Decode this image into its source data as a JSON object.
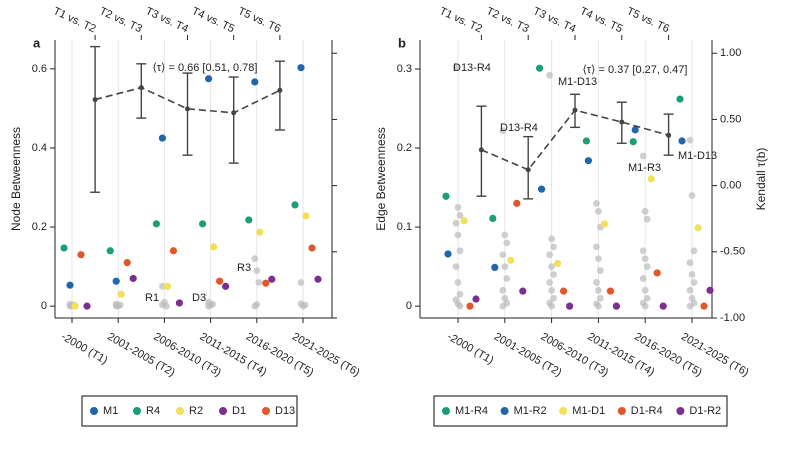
{
  "chart_data": [
    {
      "type": "scatter",
      "panel_label": "a",
      "ylabel": "Node Betweenness",
      "categories": [
        "-2000 (T1)",
        "2001-2005 (T2)",
        "2006-2010 (T3)",
        "2011-2015 (T4)",
        "2016-2020 (T5)",
        "2021-2025 (T6)"
      ],
      "top_categories": [
        "T1 vs. T2",
        "T2 vs. T3",
        "T3 vs. T4",
        "T4 vs. T5",
        "T5 vs. T6"
      ],
      "ylim": [
        -0.03,
        0.673
      ],
      "yticks": [
        0,
        0.2,
        0.4,
        0.6
      ],
      "y2lim": [
        -1,
        1.1
      ],
      "y2ticks": [
        -1,
        -0.5,
        0,
        0.5,
        1
      ],
      "y2tick_labels": false,
      "series": [
        {
          "name": "M1",
          "color": "#2166ac",
          "values": [
            0.053,
            0.063,
            0.425,
            0.575,
            0.567,
            0.603
          ]
        },
        {
          "name": "R4",
          "color": "#1b9e77",
          "values": [
            0.147,
            0.14,
            0.208,
            0.208,
            0.218,
            0.256
          ]
        },
        {
          "name": "R2",
          "color": "#f0e05a",
          "values": [
            0,
            0.03,
            0.05,
            0.15,
            0.187,
            0.228
          ]
        },
        {
          "name": "D1",
          "color": "#7b2f8e",
          "values": [
            0,
            0.07,
            0.008,
            0.05,
            0.068,
            0.068
          ]
        },
        {
          "name": "D13",
          "color": "#e0582a",
          "values": [
            0.13,
            0.11,
            0.14,
            0.063,
            0.058,
            0.147
          ]
        }
      ],
      "gray_color": "#bbbbbb",
      "gray_values": [
        [
          0,
          0,
          0.003,
          0.005
        ],
        [
          0,
          0,
          0.003,
          0.005
        ],
        [
          0.05,
          0.01,
          0,
          0.003
        ],
        [
          0,
          0.003,
          0.005,
          0.01
        ],
        [
          0.12,
          0.09,
          0.06,
          0,
          0.004
        ],
        [
          0.06,
          0,
          0.003,
          0.006
        ]
      ],
      "tau": {
        "axis": "y2",
        "color": "#444444",
        "values": [
          0.65,
          0.74,
          0.58,
          0.55,
          0.72
        ],
        "lower": [
          -0.05,
          0.51,
          0.23,
          0.17,
          0.42
        ],
        "upper": [
          1.05,
          0.92,
          0.85,
          0.82,
          0.94
        ]
      },
      "annotations": [
        "⟨τ⟩ = 0.66 [0.51, 0.78]",
        "R1",
        "D3",
        "R3"
      ]
    },
    {
      "type": "scatter",
      "panel_label": "b",
      "ylabel": "Edge Betweenness",
      "y2label": "Kendall τ(b)",
      "categories": [
        "-2000 (T1)",
        "2001-2005 (T2)",
        "2006-2010 (T3)",
        "2011-2015 (T4)",
        "2016-2020 (T5)",
        "2021-2025 (T6)"
      ],
      "top_categories": [
        "T1 vs. T2",
        "T2 vs. T3",
        "T3 vs. T4",
        "T4 vs. T5",
        "T5 vs. T6"
      ],
      "ylim": [
        -0.015,
        0.3367
      ],
      "yticks": [
        0,
        0.1,
        0.2,
        0.3
      ],
      "y2lim": [
        -1,
        1.1
      ],
      "y2ticks": [
        {
          "value": -1,
          "label": "-1.00"
        },
        {
          "value": -0.5,
          "label": "-0.50"
        },
        {
          "value": 0,
          "label": "0.00"
        },
        {
          "value": 0.5,
          "label": "0.50"
        },
        {
          "value": 1,
          "label": "1.00"
        }
      ],
      "series": [
        {
          "name": "M1-R4",
          "color": "#1b9e77",
          "values": [
            0.139,
            0.111,
            0.301,
            0.209,
            0.208,
            0.262
          ]
        },
        {
          "name": "M1-R2",
          "color": "#2166ac",
          "values": [
            0.066,
            0.049,
            0.148,
            0.184,
            0.223,
            0.209
          ]
        },
        {
          "name": "M1-D1",
          "color": "#f0e05a",
          "values": [
            0.108,
            0.058,
            0.054,
            0.104,
            0.161,
            0.099
          ]
        },
        {
          "name": "D1-R4",
          "color": "#e0582a",
          "values": [
            0,
            0.13,
            0.019,
            0.019,
            0.042,
            0
          ]
        },
        {
          "name": "D1-R2",
          "color": "#7b2f8e",
          "values": [
            0.009,
            0.019,
            0,
            0,
            0,
            0.02
          ]
        }
      ],
      "gray_color": "#bbbbbb",
      "gray_values": [
        [
          0.302,
          0.125,
          0.115,
          0.105,
          0.09,
          0.07,
          0.05,
          0.03,
          0.015,
          0.008,
          0.003,
          0
        ],
        [
          0.222,
          0.09,
          0.08,
          0.065,
          0.05,
          0.035,
          0.02,
          0.01,
          0.004,
          0
        ],
        [
          0.292,
          0.085,
          0.075,
          0.065,
          0.05,
          0.04,
          0.03,
          0.02,
          0.01,
          0.004,
          0
        ],
        [
          0.13,
          0.12,
          0.1,
          0.075,
          0.06,
          0.045,
          0.03,
          0.02,
          0.01,
          0.003,
          0
        ],
        [
          0.19,
          0.12,
          0.11,
          0.07,
          0.06,
          0.05,
          0.035,
          0.02,
          0.01,
          0.004,
          0
        ],
        [
          0.21,
          0.14,
          0.07,
          0.055,
          0.04,
          0.03,
          0.02,
          0.01,
          0.004,
          0
        ]
      ],
      "tau": {
        "axis": "y2",
        "color": "#444444",
        "values": [
          0.27,
          0.12,
          0.57,
          0.48,
          0.38
        ],
        "lower": [
          -0.08,
          -0.1,
          0.44,
          0.32,
          0.23
        ],
        "upper": [
          0.6,
          0.37,
          0.69,
          0.63,
          0.54
        ]
      },
      "annotations": [
        "⟨τ⟩ = 0.37 [0.27, 0.47]",
        "D13-R4",
        "D13-R4",
        "M1-D13",
        "M1-R3",
        "M1-D13"
      ]
    }
  ]
}
